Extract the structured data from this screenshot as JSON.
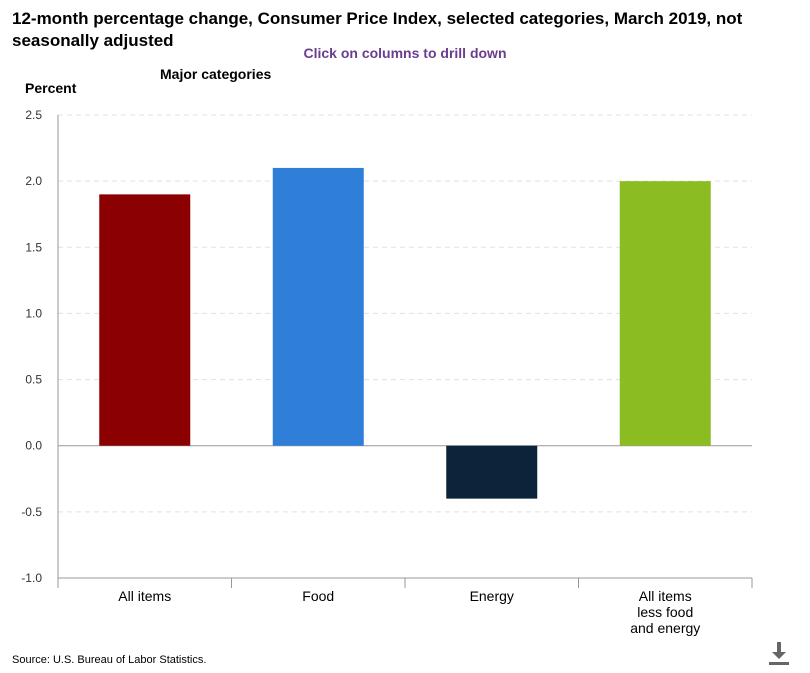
{
  "title": "12-month percentage change, Consumer Price Index, selected categories, March 2019, not seasonally adjusted",
  "subtitle": "Click on columns to drill down",
  "section_label": "Major categories",
  "source": "Source: U.S. Bureau of Labor Statistics.",
  "download_icon": "download-icon",
  "chart_data": {
    "type": "bar",
    "title": "12-month percentage change, Consumer Price Index, selected categories, March 2019, not seasonally adjusted",
    "ylabel": "Percent",
    "xlabel": "",
    "ylim": [
      -1.0,
      2.5
    ],
    "yticks": [
      2.5,
      2.0,
      1.5,
      1.0,
      0.5,
      0.0,
      -0.5,
      -1.0
    ],
    "ytick_labels": [
      "2.5",
      "2.0",
      "1.5",
      "1.0",
      "0.5",
      "0.0",
      "-0.5",
      "-1.0"
    ],
    "grid": true,
    "categories": [
      "All items",
      "Food",
      "Energy",
      "All items less food and energy"
    ],
    "category_lines": [
      [
        "All items"
      ],
      [
        "Food"
      ],
      [
        "Energy"
      ],
      [
        "All items",
        "less food",
        "and energy"
      ]
    ],
    "values": [
      1.9,
      2.1,
      -0.4,
      2.0
    ],
    "colors": [
      "#8b0000",
      "#2f7ed8",
      "#0d233a",
      "#8bbc21"
    ]
  }
}
